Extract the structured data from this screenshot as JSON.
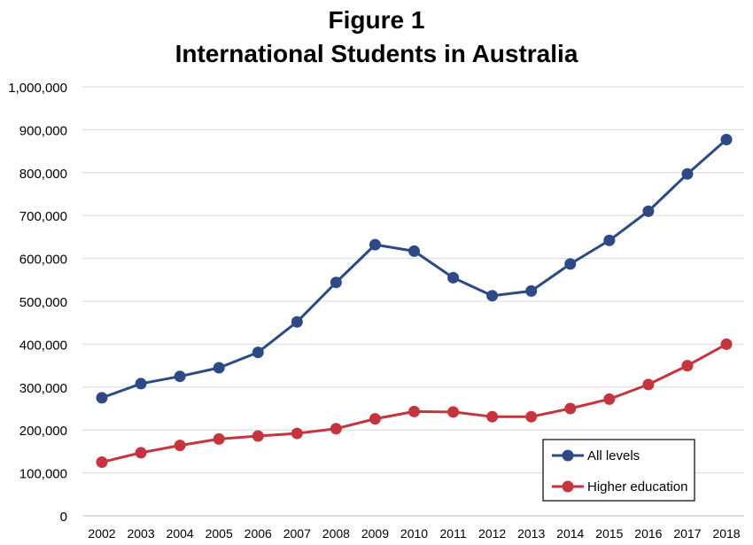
{
  "titles": {
    "line1": "Figure 1",
    "line2": "International Students in Australia"
  },
  "chart_data": {
    "type": "line",
    "title": "Figure 1 International Students in Australia",
    "xlabel": "",
    "ylabel": "",
    "ylim": [
      0,
      1000000
    ],
    "yticks": [
      0,
      100000,
      200000,
      300000,
      400000,
      500000,
      600000,
      700000,
      800000,
      900000,
      1000000
    ],
    "ytick_labels": [
      "0",
      "100,000",
      "200,000",
      "300,000",
      "400,000",
      "500,000",
      "600,000",
      "700,000",
      "800,000",
      "900,000",
      "1,000,000"
    ],
    "grid": true,
    "legend_position": "bottom-right",
    "categories": [
      "2002",
      "2003",
      "2004",
      "2005",
      "2006",
      "2007",
      "2008",
      "2009",
      "2010",
      "2011",
      "2012",
      "2013",
      "2014",
      "2015",
      "2016",
      "2017",
      "2018"
    ],
    "series": [
      {
        "name": "All levels",
        "color": "#2e4a86",
        "values": [
          275000,
          308000,
          325000,
          345000,
          381000,
          452000,
          544000,
          632000,
          617000,
          555000,
          513000,
          524000,
          587000,
          642000,
          710000,
          797000,
          877000
        ]
      },
      {
        "name": "Higher education",
        "color": "#c5343f",
        "values": [
          125000,
          147000,
          164000,
          179000,
          186000,
          192000,
          203000,
          226000,
          243000,
          242000,
          231000,
          231000,
          250000,
          272000,
          306000,
          350000,
          400000
        ]
      }
    ]
  }
}
